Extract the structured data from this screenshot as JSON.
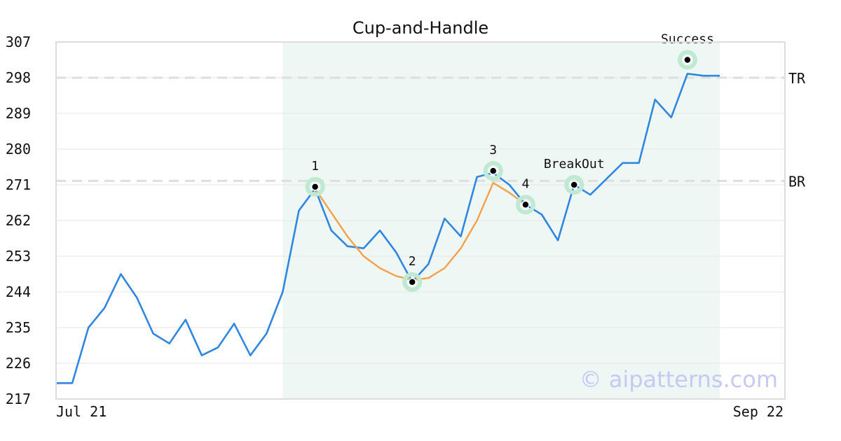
{
  "chart_data": {
    "type": "line",
    "title": "Cup-and-Handle",
    "xlabel": "",
    "ylabel": "",
    "x_start_label": "Jul 21",
    "x_end_label": "Sep 22",
    "ylim": [
      217,
      307
    ],
    "yticks": [
      217,
      226,
      235,
      244,
      253,
      262,
      271,
      280,
      289,
      298,
      307
    ],
    "grid": true,
    "price": {
      "color": "#2f87e0",
      "values": [
        221,
        221,
        235,
        240,
        248.5,
        242.5,
        233.5,
        231,
        237,
        228,
        230,
        236,
        228,
        233.5,
        244,
        264.5,
        270,
        259.5,
        255.5,
        255,
        259.5,
        254,
        246.5,
        251,
        262.5,
        258,
        273,
        274,
        271,
        266,
        263.5,
        257,
        271,
        268.5,
        272.5,
        276.5,
        276.5,
        292.5,
        288,
        299,
        298.5,
        298.5
      ]
    },
    "cup_fit": {
      "color": "#f5a04a",
      "start_index": 16,
      "values": [
        270,
        264,
        258,
        253,
        250,
        248,
        247,
        247.5,
        250,
        255,
        262,
        271.5,
        269,
        266
      ]
    },
    "levels": [
      {
        "label": "TR",
        "value": 298
      },
      {
        "label": "BR",
        "value": 272
      }
    ],
    "highlight_range": {
      "start_index": 14,
      "end_index": 41,
      "color": "#eef7f3"
    },
    "points": [
      {
        "label": "1",
        "index": 16,
        "value": 270.5
      },
      {
        "label": "2",
        "index": 22,
        "value": 246.5
      },
      {
        "label": "3",
        "index": 27,
        "value": 274.5
      },
      {
        "label": "4",
        "index": 29,
        "value": 266
      },
      {
        "label": "BreakOut",
        "index": 32,
        "value": 271
      },
      {
        "label": "Success",
        "index": 39,
        "value": 302.5
      }
    ],
    "watermark": "© aipatterns.com"
  }
}
